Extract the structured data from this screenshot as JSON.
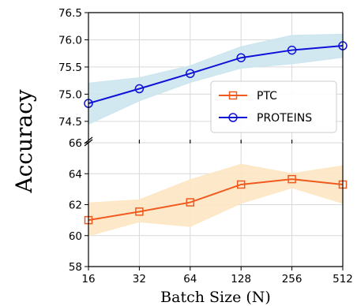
{
  "chart_data": {
    "type": "line",
    "xlabel": "Batch Size (N)",
    "ylabel": "Accuracy",
    "categories": [
      "16",
      "32",
      "64",
      "128",
      "256",
      "512"
    ],
    "broken_y_axis": true,
    "grid": true,
    "legend_placement": "right, between panels",
    "upper_panel": {
      "ylim": [
        74.15,
        76.5
      ],
      "yticks": [
        74.5,
        75.0,
        75.5,
        76.0,
        76.5
      ],
      "ytick_labels": [
        "74.5",
        "75.0",
        "75.5",
        "76.0",
        "76.5"
      ]
    },
    "lower_panel": {
      "ylim": [
        58,
        66
      ],
      "yticks": [
        58,
        60,
        62,
        64,
        66
      ],
      "ytick_labels": [
        "58",
        "60",
        "62",
        "64",
        "66"
      ]
    },
    "series": [
      {
        "name": "PTC",
        "panel": "lower",
        "color": "#f05a1e",
        "band_color": "#fde7c4",
        "marker": "square",
        "values": [
          61.0,
          61.55,
          62.15,
          63.3,
          63.65,
          63.3
        ],
        "lower": [
          60.0,
          60.9,
          60.6,
          62.1,
          63.1,
          62.1
        ],
        "upper": [
          62.1,
          62.3,
          63.6,
          64.6,
          64.0,
          64.5
        ]
      },
      {
        "name": "PROTEINS",
        "panel": "upper",
        "color": "#0f10d8",
        "band_color": "#cde6ef",
        "marker": "circle",
        "values": [
          74.83,
          75.1,
          75.38,
          75.67,
          75.81,
          75.89
        ],
        "lower": [
          74.45,
          74.88,
          75.22,
          75.48,
          75.56,
          75.68
        ],
        "upper": [
          75.2,
          75.3,
          75.52,
          75.87,
          76.08,
          76.1
        ]
      }
    ]
  }
}
